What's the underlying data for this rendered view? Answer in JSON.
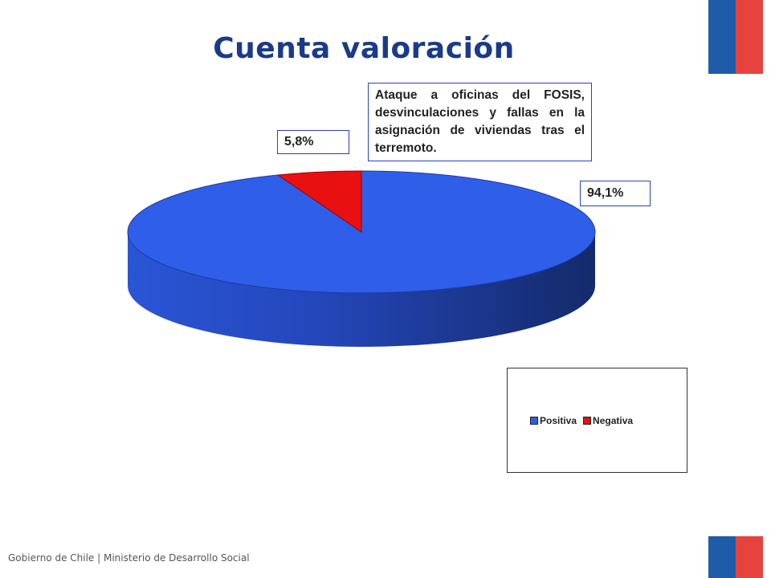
{
  "page": {
    "title": "Cuenta valoración",
    "footer": "Gobierno de Chile | Ministerio de Desarrollo Social"
  },
  "colors": {
    "positive": "#2f5fe8",
    "negative": "#e81010",
    "title": "#1a3a8a",
    "brand_blue": "#1f5ca8",
    "brand_red": "#e6433f"
  },
  "chart_data": {
    "type": "pie",
    "style": "3d",
    "title": "",
    "categories": [
      "Positiva",
      "Negativa"
    ],
    "values": [
      94.1,
      5.8
    ],
    "data_labels": [
      "94,1%",
      "5,8%"
    ],
    "annotation": "Ataque a oficinas del FOSIS, desvinculaciones y fallas en la asignación de viviendas tras el terremoto.",
    "legend": {
      "position": "bottom-right",
      "entries": [
        "Positiva",
        "Negativa"
      ]
    }
  }
}
